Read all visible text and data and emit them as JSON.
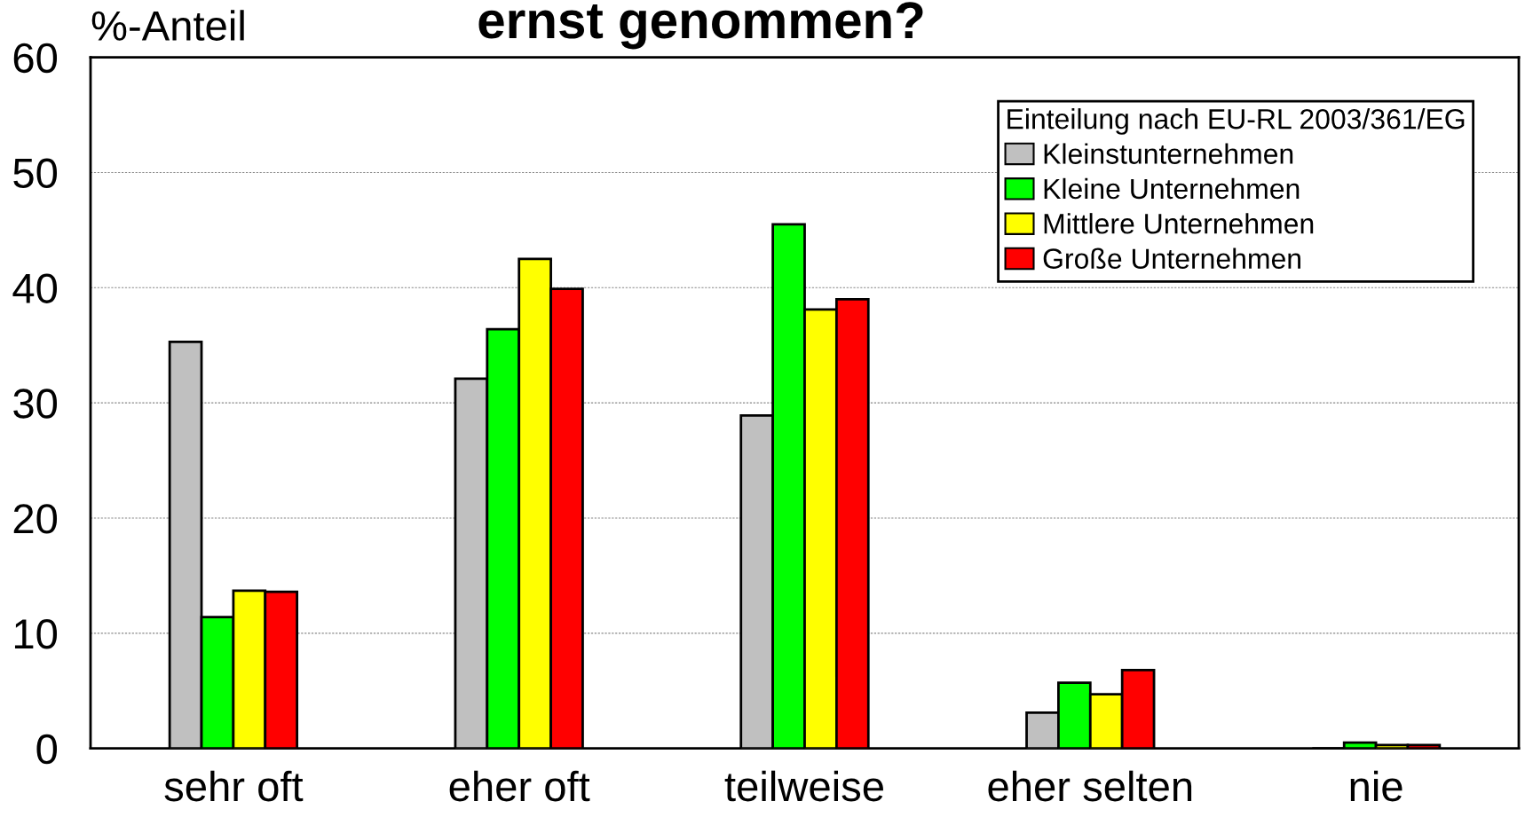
{
  "chart_data": {
    "type": "bar",
    "title": "ernst genommen?",
    "ylabel": "%-Anteil",
    "categories": [
      "sehr oft",
      "eher oft",
      "teilweise",
      "eher selten",
      "nie"
    ],
    "series": [
      {
        "name": "Kleinstunternehmen",
        "color": "#c0c0c0",
        "values": [
          35.3,
          32.1,
          28.9,
          3.1,
          0
        ]
      },
      {
        "name": "Kleine Unternehmen",
        "color": "#00ff00",
        "values": [
          11.4,
          36.4,
          45.5,
          5.7,
          0.5
        ]
      },
      {
        "name": "Mittlere Unternehmen",
        "color": "#ffff00",
        "values": [
          13.7,
          42.5,
          38.1,
          4.7,
          0.3
        ]
      },
      {
        "name": "Große Unternehmen",
        "color": "#ff0000",
        "values": [
          13.6,
          39.9,
          39.0,
          6.8,
          0.3
        ]
      }
    ],
    "legend_title": "Einteilung nach EU-RL 2003/361/EG",
    "legend": "top right",
    "ylim": [
      0,
      60
    ],
    "yticks": [
      0,
      10,
      20,
      30,
      40,
      50,
      60
    ],
    "grid": "y"
  }
}
